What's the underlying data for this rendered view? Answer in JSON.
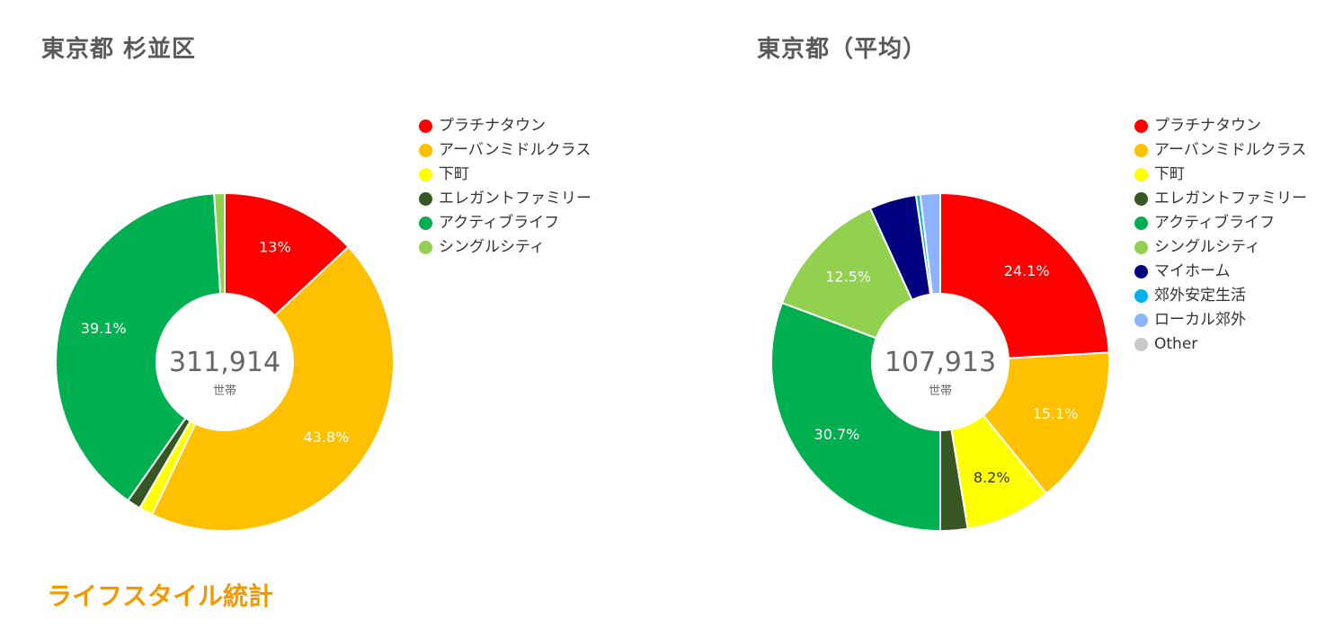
{
  "section_heading": "ライフスタイル統計",
  "chart_data": [
    {
      "type": "pie",
      "variant": "donut",
      "title": "東京都 杉並区",
      "center_value": "311,914",
      "center_unit": "世帯",
      "legend_position": "right",
      "slices": [
        {
          "name": "プラチナタウン",
          "value": 13.0,
          "label": "13%",
          "color": "#ff0000"
        },
        {
          "name": "アーバンミドルクラス",
          "value": 43.8,
          "label": "43.8%",
          "color": "#ffc000"
        },
        {
          "name": "下町",
          "value": 1.3,
          "label": "",
          "color": "#ffff00"
        },
        {
          "name": "エレガントファミリー",
          "value": 1.3,
          "label": "",
          "color": "#375623"
        },
        {
          "name": "アクティブライフ",
          "value": 39.1,
          "label": "39.1%",
          "color": "#00b050"
        },
        {
          "name": "シングルシティ",
          "value": 1.0,
          "label": "",
          "color": "#92d050"
        }
      ],
      "legend": [
        {
          "name": "プラチナタウン",
          "color": "#ff0000"
        },
        {
          "name": "アーバンミドルクラス",
          "color": "#ffc000"
        },
        {
          "name": "下町",
          "color": "#ffff00"
        },
        {
          "name": "エレガントファミリー",
          "color": "#375623"
        },
        {
          "name": "アクティブライフ",
          "color": "#00b050"
        },
        {
          "name": "シングルシティ",
          "color": "#92d050"
        }
      ]
    },
    {
      "type": "pie",
      "variant": "donut",
      "title": "東京都（平均）",
      "center_value": "107,913",
      "center_unit": "世帯",
      "legend_position": "right",
      "slices": [
        {
          "name": "プラチナタウン",
          "value": 24.1,
          "label": "24.1%",
          "color": "#ff0000"
        },
        {
          "name": "アーバンミドルクラス",
          "value": 15.1,
          "label": "15.1%",
          "color": "#ffc000"
        },
        {
          "name": "下町",
          "value": 8.2,
          "label": "8.2%",
          "color": "#ffff00",
          "label_dark": true
        },
        {
          "name": "エレガントファミリー",
          "value": 2.6,
          "label": "",
          "color": "#375623"
        },
        {
          "name": "アクティブライフ",
          "value": 30.7,
          "label": "30.7%",
          "color": "#00b050"
        },
        {
          "name": "シングルシティ",
          "value": 12.5,
          "label": "12.5%",
          "color": "#92d050"
        },
        {
          "name": "マイホーム",
          "value": 4.5,
          "label": "",
          "color": "#000080"
        },
        {
          "name": "郊外安定生活",
          "value": 0.4,
          "label": "",
          "color": "#00b0f0"
        },
        {
          "name": "ローカル郊外",
          "value": 1.9,
          "label": "",
          "color": "#8eb4ff"
        }
      ],
      "legend": [
        {
          "name": "プラチナタウン",
          "color": "#ff0000"
        },
        {
          "name": "アーバンミドルクラス",
          "color": "#ffc000"
        },
        {
          "name": "下町",
          "color": "#ffff00"
        },
        {
          "name": "エレガントファミリー",
          "color": "#375623"
        },
        {
          "name": "アクティブライフ",
          "color": "#00b050"
        },
        {
          "name": "シングルシティ",
          "color": "#92d050"
        },
        {
          "name": "マイホーム",
          "color": "#000080"
        },
        {
          "name": "郊外安定生活",
          "color": "#00b0f0"
        },
        {
          "name": "ローカル郊外",
          "color": "#8eb4ff"
        },
        {
          "name": "Other",
          "color": "#c8c8c8"
        }
      ]
    }
  ]
}
